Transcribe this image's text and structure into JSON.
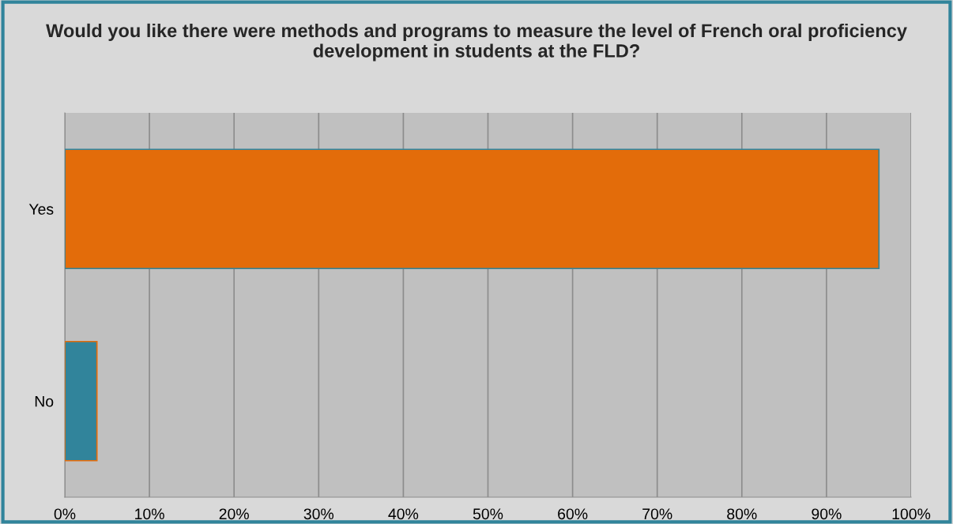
{
  "chart_data": {
    "type": "bar",
    "orientation": "horizontal",
    "title": "Would you like there were methods and programs to measure the level of French oral proficiency development in students at the FLD?",
    "categories": [
      "Yes",
      "No"
    ],
    "values": [
      96.2,
      3.8
    ],
    "colors": [
      "#e36c0a",
      "#31849b"
    ],
    "xlim": [
      0,
      100
    ],
    "xticks": [
      {
        "value": 0,
        "label": "0%"
      },
      {
        "value": 10,
        "label": "10%"
      },
      {
        "value": 20,
        "label": "20%"
      },
      {
        "value": 30,
        "label": "30%"
      },
      {
        "value": 40,
        "label": "40%"
      },
      {
        "value": 50,
        "label": "50%"
      },
      {
        "value": 60,
        "label": "60%"
      },
      {
        "value": 70,
        "label": "70%"
      },
      {
        "value": 80,
        "label": "80%"
      },
      {
        "value": 90,
        "label": "90%"
      },
      {
        "value": 100,
        "label": "100%"
      }
    ],
    "grid": "x",
    "legend": false
  }
}
